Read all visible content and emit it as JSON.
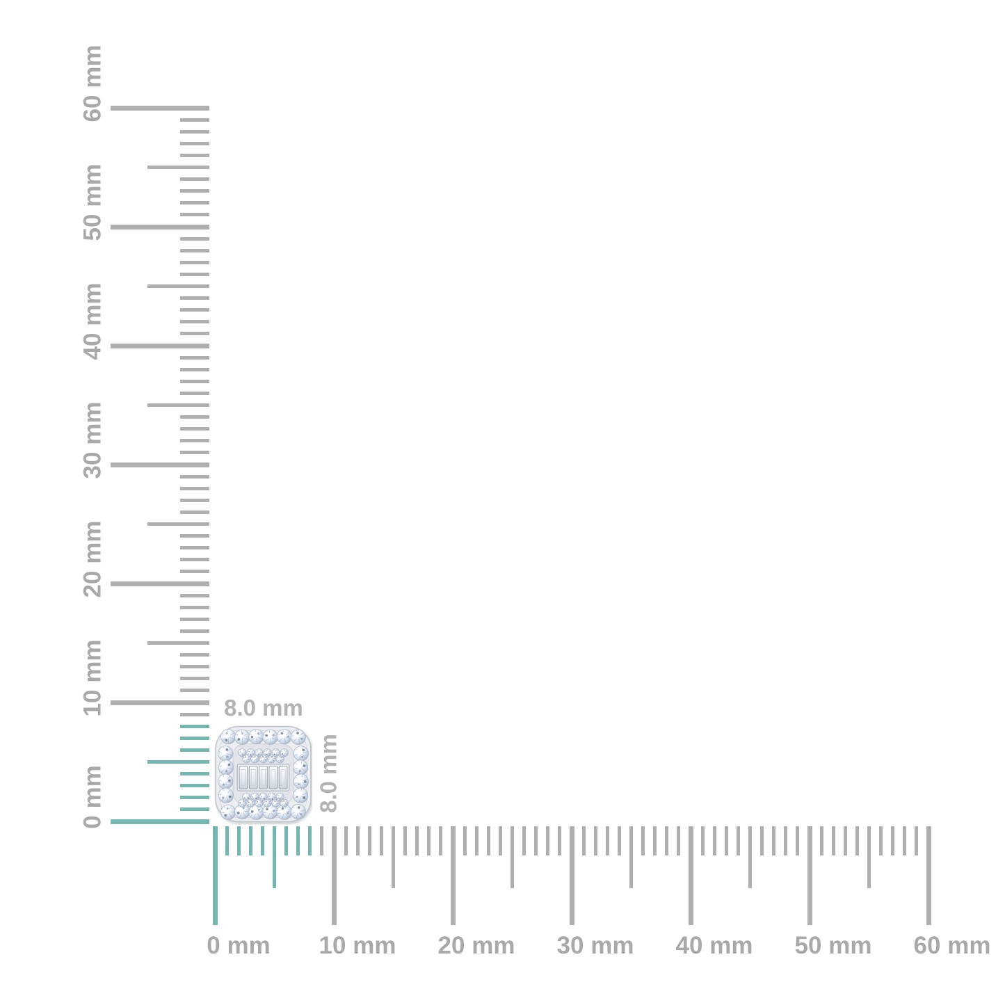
{
  "image_alt": "Cushion-shaped diamond cluster stud shown at actual size against millimeter rulers",
  "rulers": {
    "unit": "mm",
    "max_mm": 60,
    "minor_step_mm": 1,
    "medium_step_mm": 5,
    "major_step_mm": 10,
    "major_labels": [
      "0 mm",
      "10 mm",
      "20 mm",
      "30 mm",
      "40 mm",
      "50 mm",
      "60 mm"
    ],
    "highlight_extent_mm": 8,
    "tick_color": "#afafaf",
    "highlight_color": "#74b7b0",
    "label_color": "#a9a9a9"
  },
  "object": {
    "name": "diamond-cluster-stud",
    "width_label": "8.0 mm",
    "height_label": "8.0 mm",
    "label_color": "#b3b3b3",
    "metal_color": "#eceef2",
    "stone_tint": "#c9d4e3",
    "halo_stone_count": 20,
    "baguette_count": 5
  }
}
